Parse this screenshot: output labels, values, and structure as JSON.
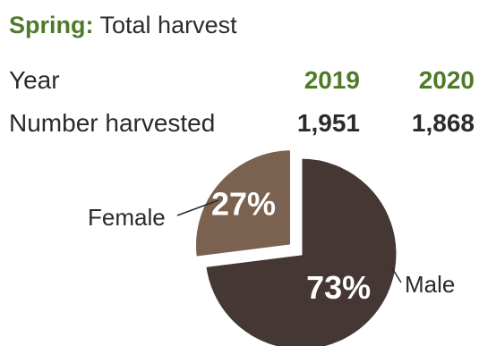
{
  "header": {
    "season": "Spring:",
    "title": "Total harvest"
  },
  "table": {
    "row_label_year": "Year",
    "row_label_harvested": "Number harvested",
    "years": [
      "2019",
      "2020"
    ],
    "harvested": [
      "1,951",
      "1,868"
    ]
  },
  "chart_data": {
    "type": "pie",
    "slices": [
      {
        "label": "Female",
        "value": 27,
        "value_label": "27%",
        "color": "#7a6150",
        "exploded": true
      },
      {
        "label": "Male",
        "value": 73,
        "value_label": "73%",
        "color": "#453734",
        "exploded": false
      }
    ]
  }
}
